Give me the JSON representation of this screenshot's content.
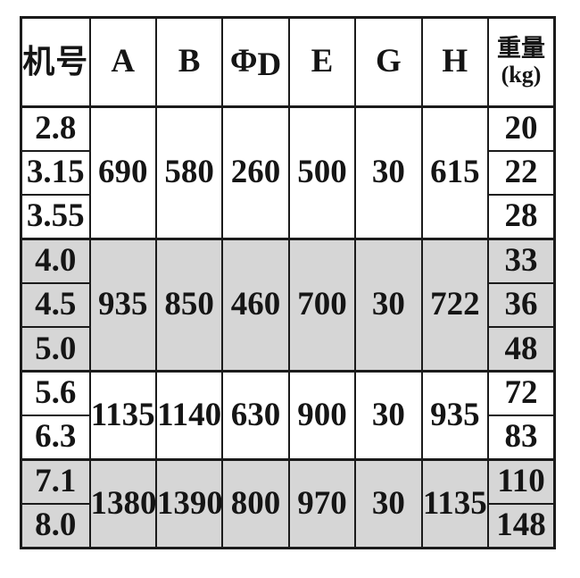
{
  "colors": {
    "shaded_bg": "#d6d6d6",
    "border": "#1b1b1b",
    "page_bg": "#ffffff"
  },
  "table": {
    "columns": [
      {
        "label": "机号"
      },
      {
        "label": "A"
      },
      {
        "label": "B"
      },
      {
        "label_phi": "Φ",
        "label_d": "D"
      },
      {
        "label": "E"
      },
      {
        "label": "G"
      },
      {
        "label": "H"
      },
      {
        "label_line1": "重量",
        "label_line2": "(kg)"
      }
    ],
    "groups": [
      {
        "shaded": false,
        "machine_numbers": [
          "2.8",
          "3.15",
          "3.55"
        ],
        "A": "690",
        "B": "580",
        "PhiD": "260",
        "E": "500",
        "G": "30",
        "H": "615",
        "weights": [
          "20",
          "22",
          "28"
        ]
      },
      {
        "shaded": true,
        "machine_numbers": [
          "4.0",
          "4.5",
          "5.0"
        ],
        "A": "935",
        "B": "850",
        "PhiD": "460",
        "E": "700",
        "G": "30",
        "H": "722",
        "weights": [
          "33",
          "36",
          "48"
        ]
      },
      {
        "shaded": false,
        "machine_numbers": [
          "5.6",
          "6.3"
        ],
        "A": "1135",
        "B": "1140",
        "PhiD": "630",
        "E": "900",
        "G": "30",
        "H": "935",
        "weights": [
          "72",
          "83"
        ]
      },
      {
        "shaded": true,
        "machine_numbers": [
          "7.1",
          "8.0"
        ],
        "A": "1380",
        "B": "1390",
        "PhiD": "800",
        "E": "970",
        "G": "30",
        "H": "1135",
        "weights": [
          "110",
          "148"
        ]
      }
    ]
  }
}
